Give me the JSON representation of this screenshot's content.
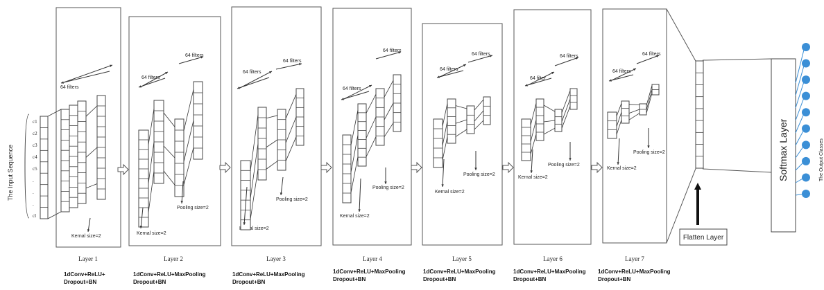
{
  "input": {
    "title": "The Input Sequence",
    "symbols": [
      "c1",
      "c2",
      "c3",
      "c4",
      "c5",
      ".",
      ".",
      ".",
      "cl"
    ]
  },
  "layers": [
    {
      "name": "Layer 1",
      "caption_line1": "1dConv+ReLU+",
      "caption_line2": "Dropout+BN",
      "filters": "64 filters",
      "kernel": "Kernal size=2",
      "pooling": ""
    },
    {
      "name": "Layer 2",
      "caption_line1": "1dConv+ReLU+MaxPooling",
      "caption_line2": "Dropout+BN",
      "filters": "64 filters",
      "filters2": "64 filters",
      "kernel": "Kernal size=2",
      "pooling": "Pooling size=2"
    },
    {
      "name": "Layer 3",
      "caption_line1": "1dConv+ReLU+MaxPooling",
      "caption_line2": "Dropout+BN",
      "filters": "64 filters",
      "filters2": "64 filters",
      "kernel": "Kernal size=2",
      "pooling": "Pooling size=2"
    },
    {
      "name": "Layer 4",
      "caption_line1": "1dConv+ReLU+MaxPooling",
      "caption_line2": "Dropout+BN",
      "filters": "64 filters",
      "filters2": "64 filters",
      "kernel": "Kernal size=2",
      "pooling": "Pooling size=2"
    },
    {
      "name": "Layer 5",
      "caption_line1": "1dConv+ReLU+MaxPooling",
      "caption_line2": "Dropout+BN",
      "filters": "64 filters",
      "filters2": "64 filters",
      "kernel": "Kernal size=2",
      "pooling": "Pooling size=2"
    },
    {
      "name": "Layer 6",
      "caption_line1": "1dConv+ReLU+MaxPooling",
      "caption_line2": "Dropout+BN",
      "filters": "64 filter",
      "filters2": "64 filters",
      "kernel": "Kernal size=2",
      "pooling": "Pooling size=2"
    },
    {
      "name": "Layer 7",
      "caption_line1": "1dConv+ReLU+MaxPooling",
      "caption_line2": "Dropout+BN",
      "filters": "64 filters",
      "filters2": "64 filters",
      "kernel": "Kernal size=2",
      "pooling": "Pooling size=2"
    }
  ],
  "flatten": {
    "label": "Flatten Layer"
  },
  "softmax": {
    "label": "Softmax Layer"
  },
  "output": {
    "title": "The Output Classes",
    "count": 10
  },
  "colors": {
    "node": "#3b8fd6",
    "line": "#333333",
    "box": "#555555"
  }
}
